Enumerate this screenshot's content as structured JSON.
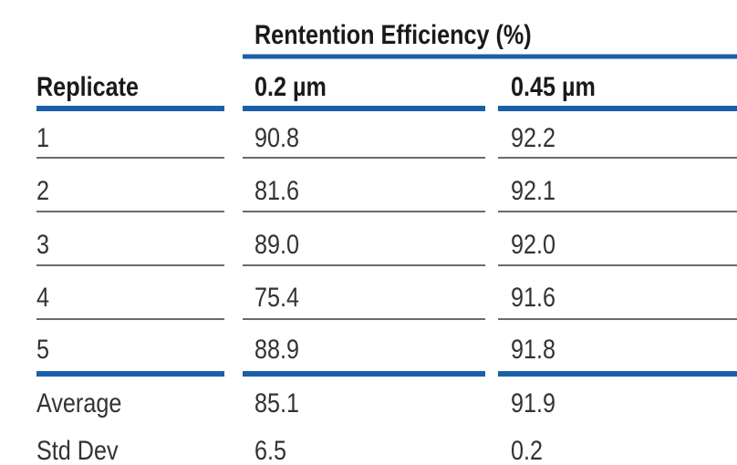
{
  "table": {
    "group_header": "Rentention Efficiency (%)",
    "columns": [
      "Replicate",
      "0.2 µm",
      "0.45 µm"
    ],
    "rows": [
      [
        "1",
        "90.8",
        "92.2"
      ],
      [
        "2",
        "81.6",
        "92.1"
      ],
      [
        "3",
        "89.0",
        "92.0"
      ],
      [
        "4",
        "75.4",
        "91.6"
      ],
      [
        "5",
        "88.9",
        "91.8"
      ]
    ],
    "summary": [
      [
        "Average",
        "85.1",
        "91.9"
      ],
      [
        "Std Dev",
        "6.5",
        "0.2"
      ]
    ]
  }
}
